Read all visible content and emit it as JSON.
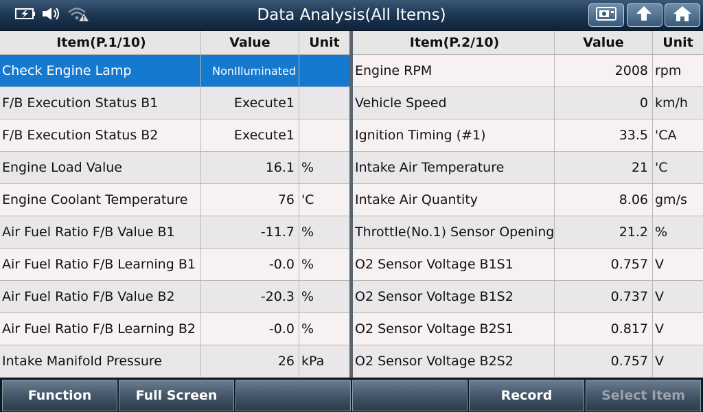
{
  "title": "Data Analysis(All Items)",
  "status_icons": [
    "battery-charging-icon",
    "speaker-icon",
    "wifi-warning-icon"
  ],
  "toolbar_buttons": [
    "screenshot-icon",
    "back-arrow-icon",
    "home-icon"
  ],
  "left_table": {
    "headers": {
      "item": "Item(P.1/10)",
      "value": "Value",
      "unit": "Unit"
    },
    "rows": [
      {
        "item": "Check Engine Lamp",
        "value": "NonIlluminated",
        "unit": ""
      },
      {
        "item": "F/B Execution Status B1",
        "value": "Execute1",
        "unit": ""
      },
      {
        "item": "F/B Execution Status B2",
        "value": "Execute1",
        "unit": ""
      },
      {
        "item": "Engine Load Value",
        "value": "16.1",
        "unit": "%"
      },
      {
        "item": "Engine Coolant Temperature",
        "value": "76",
        "unit": "'C"
      },
      {
        "item": "Air Fuel Ratio F/B Value B1",
        "value": "-11.7",
        "unit": "%"
      },
      {
        "item": "Air Fuel Ratio F/B Learning B1",
        "value": "-0.0",
        "unit": "%"
      },
      {
        "item": "Air Fuel Ratio F/B Value B2",
        "value": "-20.3",
        "unit": "%"
      },
      {
        "item": "Air Fuel Ratio F/B Learning B2",
        "value": "-0.0",
        "unit": "%"
      },
      {
        "item": "Intake Manifold Pressure",
        "value": "26",
        "unit": "kPa"
      }
    ]
  },
  "right_table": {
    "headers": {
      "item": "Item(P.2/10)",
      "value": "Value",
      "unit": "Unit"
    },
    "rows": [
      {
        "item": "Engine RPM",
        "value": "2008",
        "unit": "rpm"
      },
      {
        "item": "Vehicle Speed",
        "value": "0",
        "unit": "km/h"
      },
      {
        "item": "Ignition Timing (#1)",
        "value": "33.5",
        "unit": "'CA"
      },
      {
        "item": "Intake Air Temperature",
        "value": "21",
        "unit": "'C"
      },
      {
        "item": "Intake Air Quantity",
        "value": "8.06",
        "unit": "gm/s"
      },
      {
        "item": "Throttle(No.1) Sensor Opening",
        "value": "21.2",
        "unit": "%"
      },
      {
        "item": "O2 Sensor Voltage B1S1",
        "value": "0.757",
        "unit": "V"
      },
      {
        "item": "O2 Sensor Voltage B1S2",
        "value": "0.737",
        "unit": "V"
      },
      {
        "item": "O2 Sensor Voltage B2S1",
        "value": "0.817",
        "unit": "V"
      },
      {
        "item": "O2 Sensor Voltage B2S2",
        "value": "0.757",
        "unit": "V"
      }
    ]
  },
  "bottom_buttons": [
    {
      "label": "Function",
      "enabled": true
    },
    {
      "label": "Full Screen",
      "enabled": true
    },
    {
      "label": "",
      "enabled": true
    },
    {
      "label": "",
      "enabled": true
    },
    {
      "label": "Record",
      "enabled": true
    },
    {
      "label": "Select Item",
      "enabled": false
    }
  ],
  "colors": {
    "selected_row": "#1679d0",
    "titlebar": "#1f3a56"
  }
}
